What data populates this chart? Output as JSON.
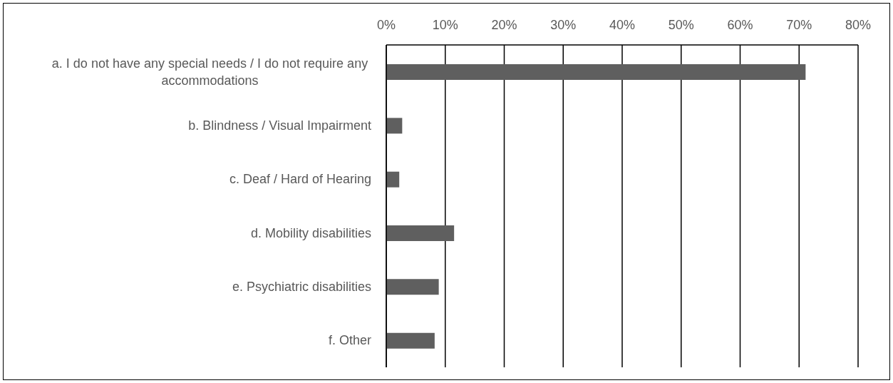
{
  "chart_data": {
    "type": "bar",
    "orientation": "horizontal",
    "categories": [
      "a. I do not have any special needs / I do not require any accommodations",
      "b. Blindness / Visual Impairment",
      "c. Deaf / Hard of Hearing",
      "d. Mobility disabilities",
      "e. Psychiatric disabilities",
      "f. Other"
    ],
    "values": [
      71.1,
      2.7,
      2.2,
      11.5,
      8.9,
      8.2
    ],
    "color": "#5f5f5f",
    "xlim": [
      0,
      80
    ],
    "xticks": [
      {
        "value": 0,
        "label": "0%"
      },
      {
        "value": 10,
        "label": "10%"
      },
      {
        "value": 20,
        "label": "20%"
      },
      {
        "value": 30,
        "label": "30%"
      },
      {
        "value": 40,
        "label": "40%"
      },
      {
        "value": 50,
        "label": "50%"
      },
      {
        "value": 60,
        "label": "60%"
      },
      {
        "value": 70,
        "label": "70%"
      },
      {
        "value": 80,
        "label": "80%"
      }
    ],
    "grid": "x"
  }
}
